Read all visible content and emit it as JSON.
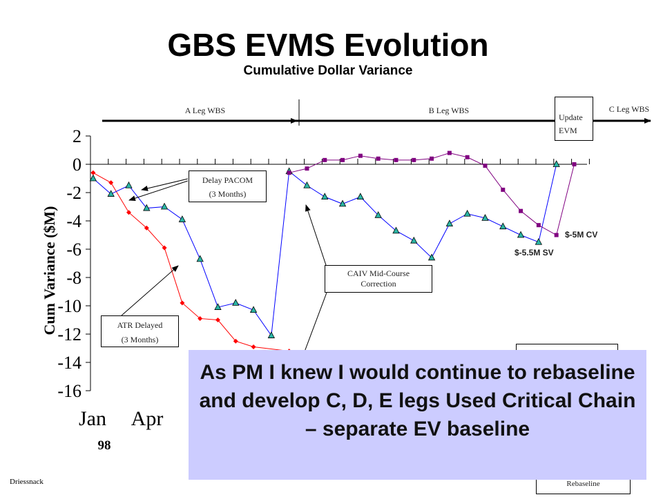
{
  "slide": {
    "title": "GBS EVMS Evolution",
    "subtitle": "Cumulative Dollar Variance",
    "footer": "Driessnack"
  },
  "chart_data": {
    "type": "line",
    "ylabel": "Cum Variance ($M)",
    "ylim": [
      -16,
      2
    ],
    "yticks": [
      2,
      0,
      -2,
      -4,
      -6,
      -8,
      -10,
      -12,
      -14,
      -16
    ],
    "x_tick_labels": [
      "Jan",
      "Apr"
    ],
    "year_label": "98",
    "grid": false,
    "series": [
      {
        "marker": "diamond",
        "color": "#ff0000",
        "x": [
          0,
          1,
          2,
          3,
          4,
          5,
          6,
          7,
          8,
          9,
          10,
          11
        ],
        "values": [
          -0.6,
          -1.3,
          -3.4,
          -4.5,
          -5.9,
          -9.8,
          -10.9,
          -11.0,
          -12.5,
          -12.9,
          null,
          -13.2
        ]
      },
      {
        "marker": "triangle",
        "color": "#0000ff",
        "marker_fill": "#2ab5a5",
        "x": [
          0,
          1,
          2,
          3,
          4,
          5,
          6,
          7,
          8,
          9,
          10,
          11,
          12,
          13,
          14,
          15,
          16,
          17,
          18,
          19,
          20,
          21,
          22,
          23,
          24,
          25,
          26
        ],
        "values": [
          -1.0,
          -2.1,
          -1.5,
          -3.1,
          -3.0,
          -3.9,
          -6.7,
          -10.1,
          -9.8,
          -10.3,
          -12.1,
          -0.5,
          -1.5,
          -2.3,
          -2.8,
          -2.3,
          -3.6,
          -4.7,
          -5.4,
          -6.6,
          -4.2,
          -3.5,
          -3.8,
          -4.4,
          -5.0,
          -5.5,
          0.0
        ]
      },
      {
        "marker": "square",
        "color": "#800080",
        "x": [
          11,
          12,
          13,
          14,
          15,
          16,
          17,
          18,
          19,
          20,
          21,
          22,
          23,
          24,
          25,
          26,
          27
        ],
        "values": [
          -0.6,
          -0.3,
          0.3,
          0.3,
          0.6,
          0.4,
          0.3,
          0.3,
          0.4,
          0.8,
          0.5,
          -0.1,
          -1.8,
          -3.3,
          -4.3,
          -5.0,
          0.0
        ]
      }
    ],
    "phases": [
      {
        "label": "A Leg WBS"
      },
      {
        "label": "B Leg WBS"
      },
      {
        "label": "C Leg WBS"
      }
    ],
    "annotations": [
      {
        "id": "cv",
        "text": "$-5M CV"
      },
      {
        "id": "sv",
        "text": "$-5.5M SV"
      }
    ]
  },
  "callouts": {
    "update_evm_line1": "Update",
    "update_evm_line2": "EVM",
    "delay_pacom_line1": "Delay PACOM",
    "delay_pacom_line2": "(3 Months)",
    "caiv_line1": "CAIV Mid-Course",
    "caiv_line2": "Correction",
    "atr_line1": "ATR Delayed",
    "atr_line2": "(3 Months)",
    "rebaseline": "Rebaseline"
  },
  "overlay": {
    "text": "As PM I knew I would continue to rebaseline and develop C, D, E legs Used Critical Chain – separate EV baseline"
  }
}
